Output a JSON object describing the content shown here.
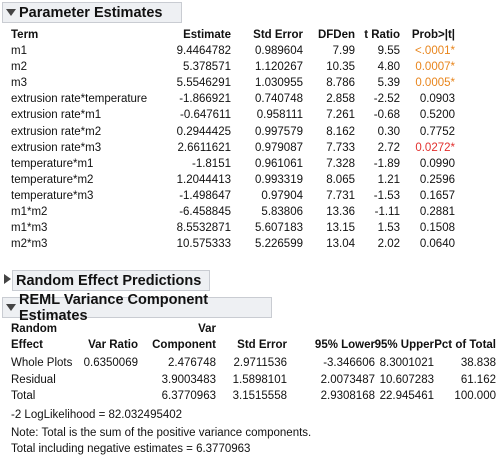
{
  "parameter_estimates": {
    "title": "Parameter Estimates",
    "columns": [
      "Term",
      "Estimate",
      "Std Error",
      "DFDen",
      "t Ratio",
      "Prob>|t|"
    ],
    "rows": [
      {
        "term": "m1",
        "estimate": "9.4464782",
        "std_error": "0.989604",
        "dfden": "7.99",
        "t_ratio": "9.55",
        "prob": "<.0001*",
        "prob_color": "orange"
      },
      {
        "term": "m2",
        "estimate": "5.378571",
        "std_error": "1.120267",
        "dfden": "10.35",
        "t_ratio": "4.80",
        "prob": "0.0007*",
        "prob_color": "orange"
      },
      {
        "term": "m3",
        "estimate": "5.5546291",
        "std_error": "1.030955",
        "dfden": "8.786",
        "t_ratio": "5.39",
        "prob": "0.0005*",
        "prob_color": "orange"
      },
      {
        "term": "extrusion rate*temperature",
        "estimate": "-1.866921",
        "std_error": "0.740748",
        "dfden": "2.858",
        "t_ratio": "-2.52",
        "prob": "0.0903",
        "prob_color": ""
      },
      {
        "term": "extrusion rate*m1",
        "estimate": "-0.647611",
        "std_error": "0.958111",
        "dfden": "7.261",
        "t_ratio": "-0.68",
        "prob": "0.5200",
        "prob_color": ""
      },
      {
        "term": "extrusion rate*m2",
        "estimate": "0.2944425",
        "std_error": "0.997579",
        "dfden": "8.162",
        "t_ratio": "0.30",
        "prob": "0.7752",
        "prob_color": ""
      },
      {
        "term": "extrusion rate*m3",
        "estimate": "2.6611621",
        "std_error": "0.979087",
        "dfden": "7.733",
        "t_ratio": "2.72",
        "prob": "0.0272*",
        "prob_color": "red"
      },
      {
        "term": "temperature*m1",
        "estimate": "-1.8151",
        "std_error": "0.961061",
        "dfden": "7.328",
        "t_ratio": "-1.89",
        "prob": "0.0990",
        "prob_color": ""
      },
      {
        "term": "temperature*m2",
        "estimate": "1.2044413",
        "std_error": "0.993319",
        "dfden": "8.065",
        "t_ratio": "1.21",
        "prob": "0.2596",
        "prob_color": ""
      },
      {
        "term": "temperature*m3",
        "estimate": "-1.498647",
        "std_error": "0.97904",
        "dfden": "7.731",
        "t_ratio": "-1.53",
        "prob": "0.1657",
        "prob_color": ""
      },
      {
        "term": "m1*m2",
        "estimate": "-6.458845",
        "std_error": "5.83806",
        "dfden": "13.36",
        "t_ratio": "-1.11",
        "prob": "0.2881",
        "prob_color": ""
      },
      {
        "term": "m1*m3",
        "estimate": "8.5532871",
        "std_error": "5.607183",
        "dfden": "13.15",
        "t_ratio": "1.53",
        "prob": "0.1508",
        "prob_color": ""
      },
      {
        "term": "m2*m3",
        "estimate": "10.575333",
        "std_error": "5.226599",
        "dfden": "13.04",
        "t_ratio": "2.02",
        "prob": "0.0640",
        "prob_color": ""
      }
    ]
  },
  "random_effect": {
    "title": "Random Effect Predictions"
  },
  "reml": {
    "title": "REML Variance Component Estimates",
    "header_top": [
      "Random",
      "Var"
    ],
    "columns": [
      "Effect",
      "Var Ratio",
      "Component",
      "Std Error",
      "95% Lower",
      "95% Upper",
      "Pct of Total"
    ],
    "rows": [
      {
        "effect": "Whole Plots",
        "var_ratio": "0.6350069",
        "component": "2.476748",
        "std_error": "2.9711536",
        "lower": "-3.346606",
        "upper": "8.3001021",
        "pct": "38.838"
      },
      {
        "effect": "Residual",
        "var_ratio": "",
        "component": "3.9003483",
        "std_error": "1.5898101",
        "lower": "2.0073487",
        "upper": "10.607283",
        "pct": "61.162"
      },
      {
        "effect": "Total",
        "var_ratio": "",
        "component": "6.3770963",
        "std_error": "3.1515558",
        "lower": "2.9308168",
        "upper": "22.945461",
        "pct": "100.000"
      }
    ],
    "loglik": " -2 LogLikelihood =  82.032495402",
    "note": "Note: Total is the sum of the positive variance components.",
    "total_neg": "Total including negative estimates =  6.3770963"
  },
  "colors": {
    "orange": "#e8851c",
    "red": "#e2302e",
    "header_bg": "#eef0f3"
  }
}
